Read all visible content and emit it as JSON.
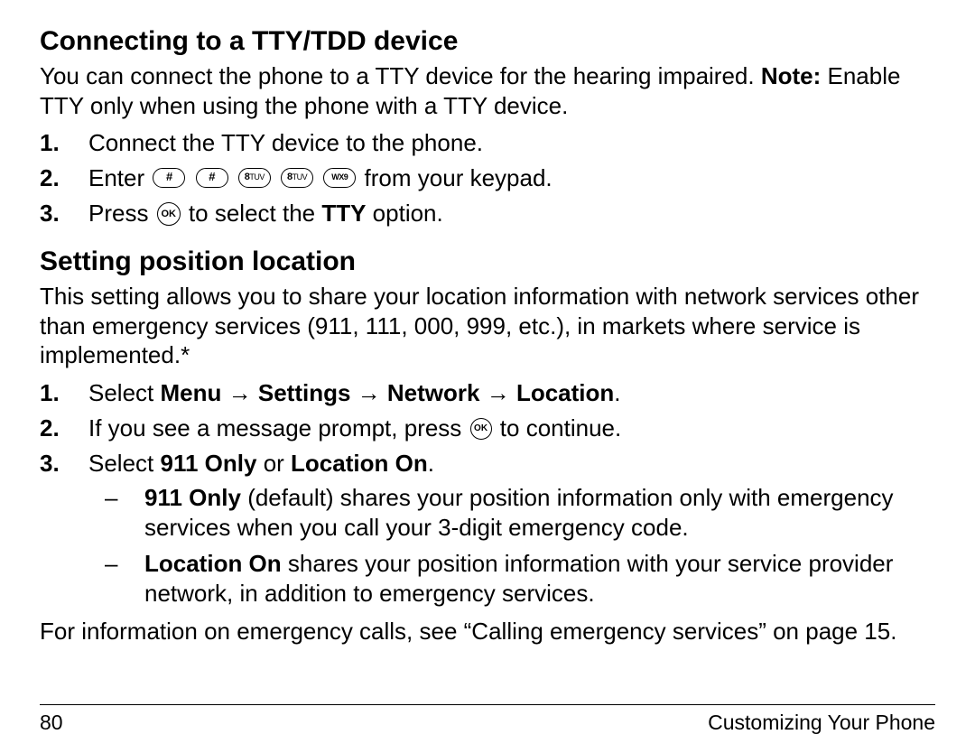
{
  "section1": {
    "heading": "Connecting to a TTY/TDD device",
    "intro_pre": "You can connect the phone to a TTY device for the hearing impaired. ",
    "intro_note_label": "Note:",
    "intro_post": " Enable TTY only when using the phone with a TTY device.",
    "steps": {
      "s1": "Connect the TTY device to the phone.",
      "s2_pre": "Enter ",
      "s2_post": " from your keypad.",
      "s2_keys": [
        "#",
        "#",
        "8",
        "8",
        "9"
      ],
      "s3_pre": "Press ",
      "s3_mid": " to select the ",
      "s3_bold": "TTY",
      "s3_post": " option."
    }
  },
  "section2": {
    "heading": "Setting position location",
    "intro": "This setting allows you to share your location information with network services other than emergency services (911, 111, 000, 999, etc.), in markets where service is implemented.*",
    "steps": {
      "s1_pre": "Select ",
      "s1_menu": "Menu",
      "s1_settings": "Settings",
      "s1_network": "Network",
      "s1_location": "Location",
      "s1_dot": ".",
      "s2_pre": "If you see a message prompt, press ",
      "s2_post": " to continue.",
      "s3_pre": "Select ",
      "s3_opt1": "911 Only",
      "s3_or": " or ",
      "s3_opt2": "Location On",
      "s3_dot": "."
    },
    "sub": {
      "a_bold": "911 Only",
      "a_rest": " (default) shares your position information only with emergency services when you call your 3-digit emergency code.",
      "b_bold": "Location On",
      "b_rest": " shares your position information with your service provider network, in addition to emergency services."
    },
    "closing": "For information on emergency calls, see “Calling emergency services” on page 15."
  },
  "footer": {
    "page_number": "80",
    "section_title": "Customizing Your Phone"
  },
  "icons": {
    "ok_label": "OK",
    "arrow": "→"
  }
}
